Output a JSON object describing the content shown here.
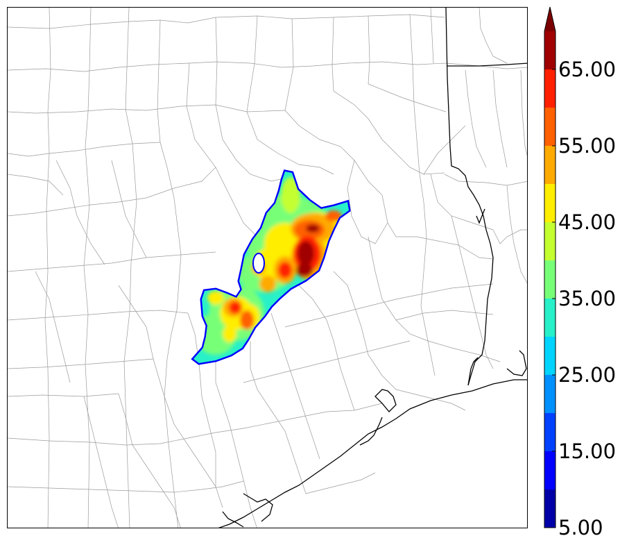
{
  "map": {
    "description_colors": {
      "county_lines": "#9a9a9a",
      "state_coast_lines": "#000000",
      "frame": "#000000"
    },
    "field_levels": [
      5,
      10,
      15,
      20,
      25,
      30,
      35,
      40,
      45,
      50,
      55,
      60,
      65
    ],
    "colors": [
      "#0000a8",
      "#0000ff",
      "#0040ff",
      "#0090ff",
      "#00d4ff",
      "#28f0c8",
      "#78ff78",
      "#c4ff30",
      "#ffee00",
      "#ffaa00",
      "#ff6000",
      "#ff2000",
      "#a00000"
    ],
    "extend_color": "#7a0000"
  },
  "colorbar": {
    "tick_labels": [
      "5.00",
      "15.00",
      "25.00",
      "35.00",
      "45.00",
      "55.00",
      "65.00"
    ],
    "extend": "max"
  }
}
